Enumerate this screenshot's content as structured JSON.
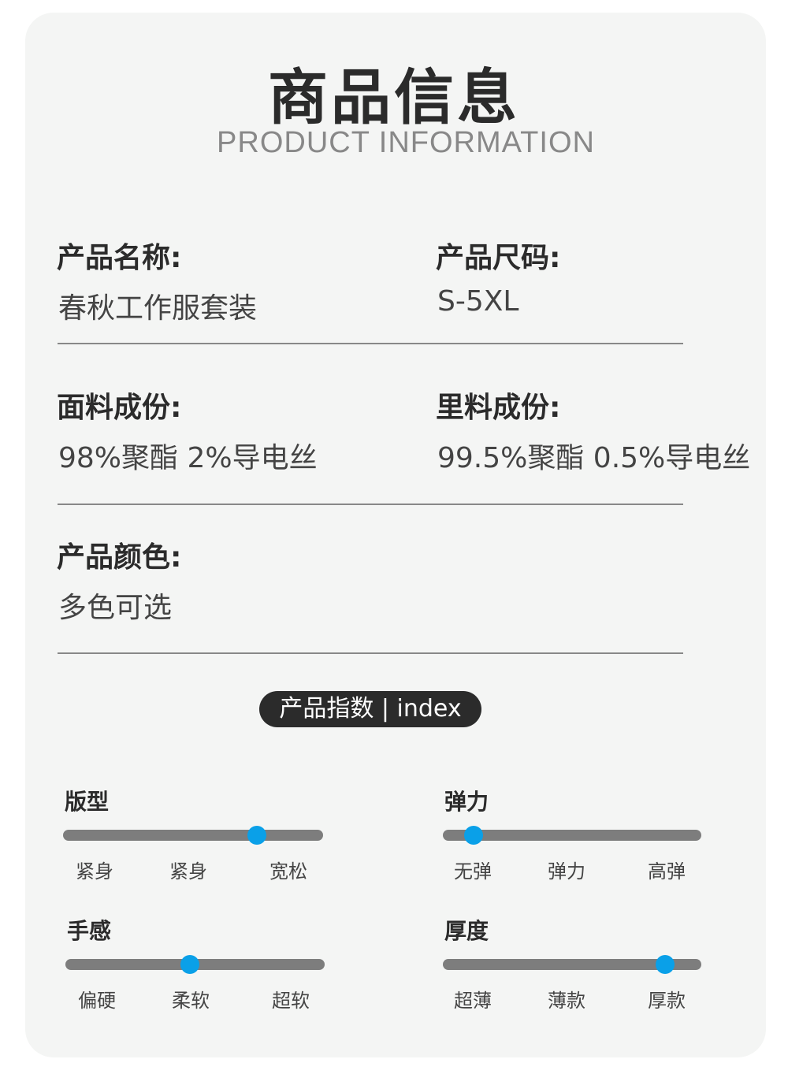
{
  "header": {
    "title": "商品信息",
    "subtitle": "PRODUCT INFORMATION"
  },
  "fields": [
    {
      "label": "产品名称:",
      "value": "春秋工作服套装"
    },
    {
      "label": "产品尺码:",
      "value": "S-5XL"
    },
    {
      "label": "面料成份:",
      "value": "98%聚酯 2%导电丝"
    },
    {
      "label": "里料成份:",
      "value": "99.5%聚酯 0.5%导电丝"
    },
    {
      "label": "产品颜色:",
      "value": "多色可选"
    }
  ],
  "index_badge": "产品指数 | index",
  "indices": [
    {
      "title": "版型",
      "level": 0.745,
      "ticks": [
        "紧身",
        "紧身",
        "宽松"
      ]
    },
    {
      "title": "弹力",
      "level": 0.12,
      "ticks": [
        "无弹",
        "弹力",
        "高弹"
      ]
    },
    {
      "title": "手感",
      "level": 0.48,
      "ticks": [
        "偏硬",
        "柔软",
        "超软"
      ]
    },
    {
      "title": "厚度",
      "level": 0.86,
      "ticks": [
        "超薄",
        "薄款",
        "厚款"
      ]
    }
  ],
  "colors": {
    "accent": "#0aa0e8",
    "track": "#7d7d7d",
    "card": "#f4f5f4"
  }
}
